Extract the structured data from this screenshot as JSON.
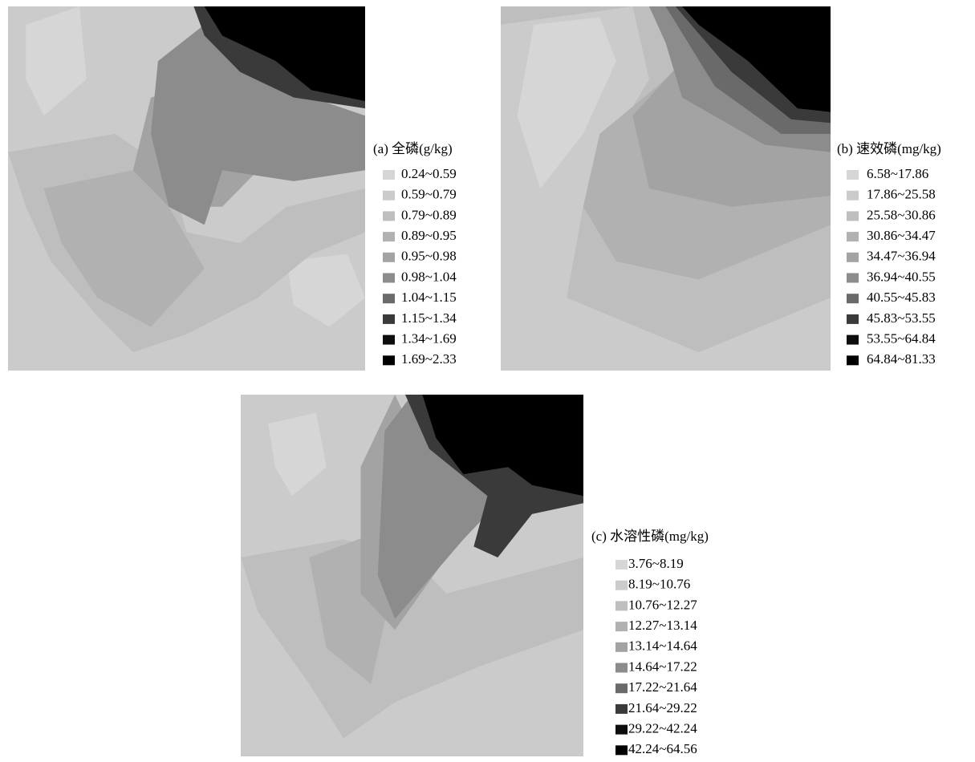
{
  "panels": [
    {
      "title": "(a) 全磷(g/kg)",
      "legend": [
        {
          "label": "0.24~0.59",
          "color": "#d6d6d6"
        },
        {
          "label": "0.59~0.79",
          "color": "#cbcbcb"
        },
        {
          "label": "0.79~0.89",
          "color": "#bebebe"
        },
        {
          "label": "0.89~0.95",
          "color": "#b1b1b1"
        },
        {
          "label": "0.95~0.98",
          "color": "#a3a3a3"
        },
        {
          "label": "0.98~1.04",
          "color": "#8c8c8c"
        },
        {
          "label": "1.04~1.15",
          "color": "#6a6a6a"
        },
        {
          "label": "1.15~1.34",
          "color": "#3a3a3a"
        },
        {
          "label": "1.34~1.69",
          "color": "#0d0d0d"
        },
        {
          "label": "1.69~2.33",
          "color": "#000000"
        }
      ]
    },
    {
      "title": "(b) 速效磷(mg/kg)",
      "legend": [
        {
          "label": "6.58~17.86",
          "color": "#d6d6d6"
        },
        {
          "label": "17.86~25.58",
          "color": "#cbcbcb"
        },
        {
          "label": "25.58~30.86",
          "color": "#bebebe"
        },
        {
          "label": "30.86~34.47",
          "color": "#b1b1b1"
        },
        {
          "label": "34.47~36.94",
          "color": "#a3a3a3"
        },
        {
          "label": "36.94~40.55",
          "color": "#8c8c8c"
        },
        {
          "label": "40.55~45.83",
          "color": "#6a6a6a"
        },
        {
          "label": "45.83~53.55",
          "color": "#3a3a3a"
        },
        {
          "label": "53.55~64.84",
          "color": "#0d0d0d"
        },
        {
          "label": "64.84~81.33",
          "color": "#000000"
        }
      ]
    },
    {
      "title": "(c) 水溶性磷(mg/kg)",
      "legend": [
        {
          "label": "3.76~8.19",
          "color": "#d6d6d6"
        },
        {
          "label": "8.19~10.76",
          "color": "#cbcbcb"
        },
        {
          "label": "10.76~12.27",
          "color": "#bebebe"
        },
        {
          "label": "12.27~13.14",
          "color": "#b1b1b1"
        },
        {
          "label": "13.14~14.64",
          "color": "#a3a3a3"
        },
        {
          "label": "14.64~17.22",
          "color": "#8c8c8c"
        },
        {
          "label": "17.22~21.64",
          "color": "#6a6a6a"
        },
        {
          "label": "21.64~29.22",
          "color": "#3a3a3a"
        },
        {
          "label": "29.22~42.24",
          "color": "#0d0d0d"
        },
        {
          "label": "42.24~64.56",
          "color": "#000000"
        }
      ]
    }
  ]
}
